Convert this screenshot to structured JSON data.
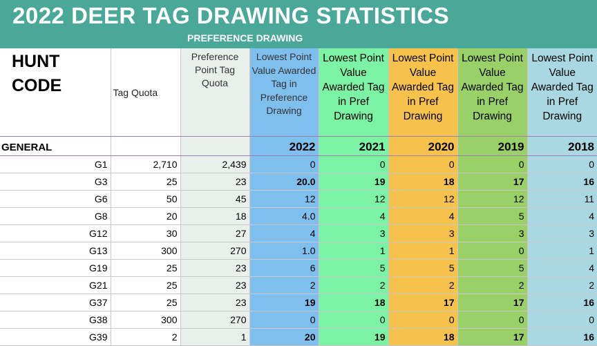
{
  "title": "2022 DEER TAG DRAWING STATISTICS",
  "subtitle": "PREFERENCE DRAWING",
  "headers": {
    "hunt_code": "HUNT CODE",
    "tag_quota": "Tag Quota",
    "pref_quota": "Preference Point Tag Quota",
    "low_2022": "Lowest Point Value Awarded Tag in Preference Drawing",
    "low_pref": "Lowest Point Value Awarded Tag in Pref Drawing"
  },
  "section": "GENERAL",
  "years": [
    "2022",
    "2021",
    "2020",
    "2019",
    "2018"
  ],
  "colors": {
    "banner": "#4aa898",
    "col_2022": "#7fbfee",
    "col_2021": "#7cf2a4",
    "col_2020": "#f6c24c",
    "col_2019": "#99d068",
    "col_2018": "#a9d7e2",
    "highlight_text": "#e02020"
  },
  "rows": [
    {
      "code": "G1",
      "quota": "2,710",
      "pref": "2,439",
      "v": [
        "0",
        "0",
        "0",
        "0",
        "0"
      ],
      "red": [
        false,
        false,
        false,
        false,
        false
      ]
    },
    {
      "code": "G3",
      "quota": "25",
      "pref": "23",
      "v": [
        "20.0",
        "19",
        "18",
        "17",
        "16"
      ],
      "red": [
        true,
        true,
        true,
        true,
        true
      ]
    },
    {
      "code": "G6",
      "quota": "50",
      "pref": "45",
      "v": [
        "12",
        "12",
        "12",
        "12",
        "11"
      ],
      "red": [
        false,
        false,
        false,
        false,
        false
      ]
    },
    {
      "code": "G8",
      "quota": "20",
      "pref": "18",
      "v": [
        "4.0",
        "4",
        "4",
        "5",
        "4"
      ],
      "red": [
        false,
        false,
        false,
        false,
        false
      ]
    },
    {
      "code": "G12",
      "quota": "30",
      "pref": "27",
      "v": [
        "4",
        "3",
        "3",
        "3",
        "3"
      ],
      "red": [
        false,
        false,
        false,
        false,
        false
      ]
    },
    {
      "code": "G13",
      "quota": "300",
      "pref": "270",
      "v": [
        "1.0",
        "1",
        "1",
        "0",
        "1"
      ],
      "red": [
        false,
        false,
        false,
        false,
        false
      ]
    },
    {
      "code": "G19",
      "quota": "25",
      "pref": "23",
      "v": [
        "6",
        "5",
        "5",
        "5",
        "4"
      ],
      "red": [
        false,
        false,
        false,
        false,
        false
      ]
    },
    {
      "code": "G21",
      "quota": "25",
      "pref": "23",
      "v": [
        "2",
        "2",
        "2",
        "2",
        "2"
      ],
      "red": [
        false,
        false,
        false,
        false,
        false
      ]
    },
    {
      "code": "G37",
      "quota": "25",
      "pref": "23",
      "v": [
        "19",
        "18",
        "17",
        "17",
        "16"
      ],
      "red": [
        true,
        true,
        true,
        true,
        true
      ]
    },
    {
      "code": "G38",
      "quota": "300",
      "pref": "270",
      "v": [
        "0",
        "0",
        "0",
        "0",
        "0"
      ],
      "red": [
        false,
        false,
        false,
        false,
        false
      ]
    },
    {
      "code": "G39",
      "quota": "2",
      "pref": "1",
      "v": [
        "20",
        "19",
        "18",
        "17",
        "16"
      ],
      "red": [
        true,
        true,
        true,
        true,
        true
      ]
    }
  ]
}
